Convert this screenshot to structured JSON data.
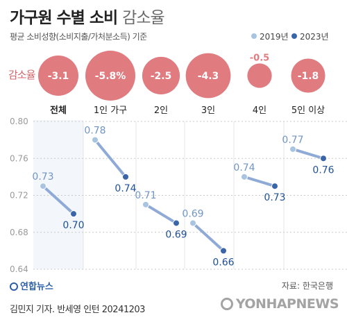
{
  "title_bold": "가구원 수별 소비",
  "title_light": "감소율",
  "subtitle": "평균 소비성향(소비지출/가처분소득) 기준",
  "legend": [
    {
      "label": "2019년",
      "color": "#a9c4e0"
    },
    {
      "label": "2023년",
      "color": "#3a65a8"
    }
  ],
  "rate_label": "감소율",
  "source": "자료: 한국은행",
  "logo_text": "연합뉴스",
  "credit": "김민지 기자. 반세영 인턴  20241203",
  "watermark": "YONHAPNEWS",
  "colors": {
    "bubble": "#e07b80",
    "bubble_text": "#ffffff",
    "line_2019_point": "#a9c4e0",
    "line_2023_point": "#3a65a8",
    "connector": "#8faad6",
    "label_2019": "#7095c4",
    "label_2023": "#1f4f96",
    "grid": "#c9c9c9",
    "tick": "#9a9a9a",
    "band": "#f3f6fb"
  },
  "chart_data": {
    "type": "scatter",
    "categories": [
      "전체",
      "1인 가구",
      "2인",
      "3인",
      "4인",
      "5인 이상"
    ],
    "ylim": [
      0.64,
      0.8
    ],
    "yticks": [
      "0.80",
      "0.76",
      "0.72",
      "0.68",
      "0.64"
    ],
    "ytick_values": [
      0.8,
      0.76,
      0.72,
      0.68,
      0.64
    ],
    "series": [
      {
        "name": "2019년",
        "values": [
          0.73,
          0.78,
          0.71,
          0.69,
          0.74,
          0.77
        ],
        "labels": [
          "0.73",
          "0.78",
          "0.71",
          "0.69",
          "0.74",
          "0.77"
        ]
      },
      {
        "name": "2023년",
        "values": [
          0.7,
          0.74,
          0.69,
          0.66,
          0.73,
          0.76
        ],
        "labels": [
          "0.70",
          "0.74",
          "0.69",
          "0.66",
          "0.73",
          "0.76"
        ]
      }
    ],
    "decline_rates": [
      -3.1,
      -5.8,
      -2.5,
      -4.3,
      -0.5,
      -1.8
    ],
    "decline_labels": [
      "-3.1",
      "-5.8%",
      "-2.5",
      "-4.3",
      "-0.5",
      "-1.8"
    ],
    "highlight_category": "전체"
  }
}
